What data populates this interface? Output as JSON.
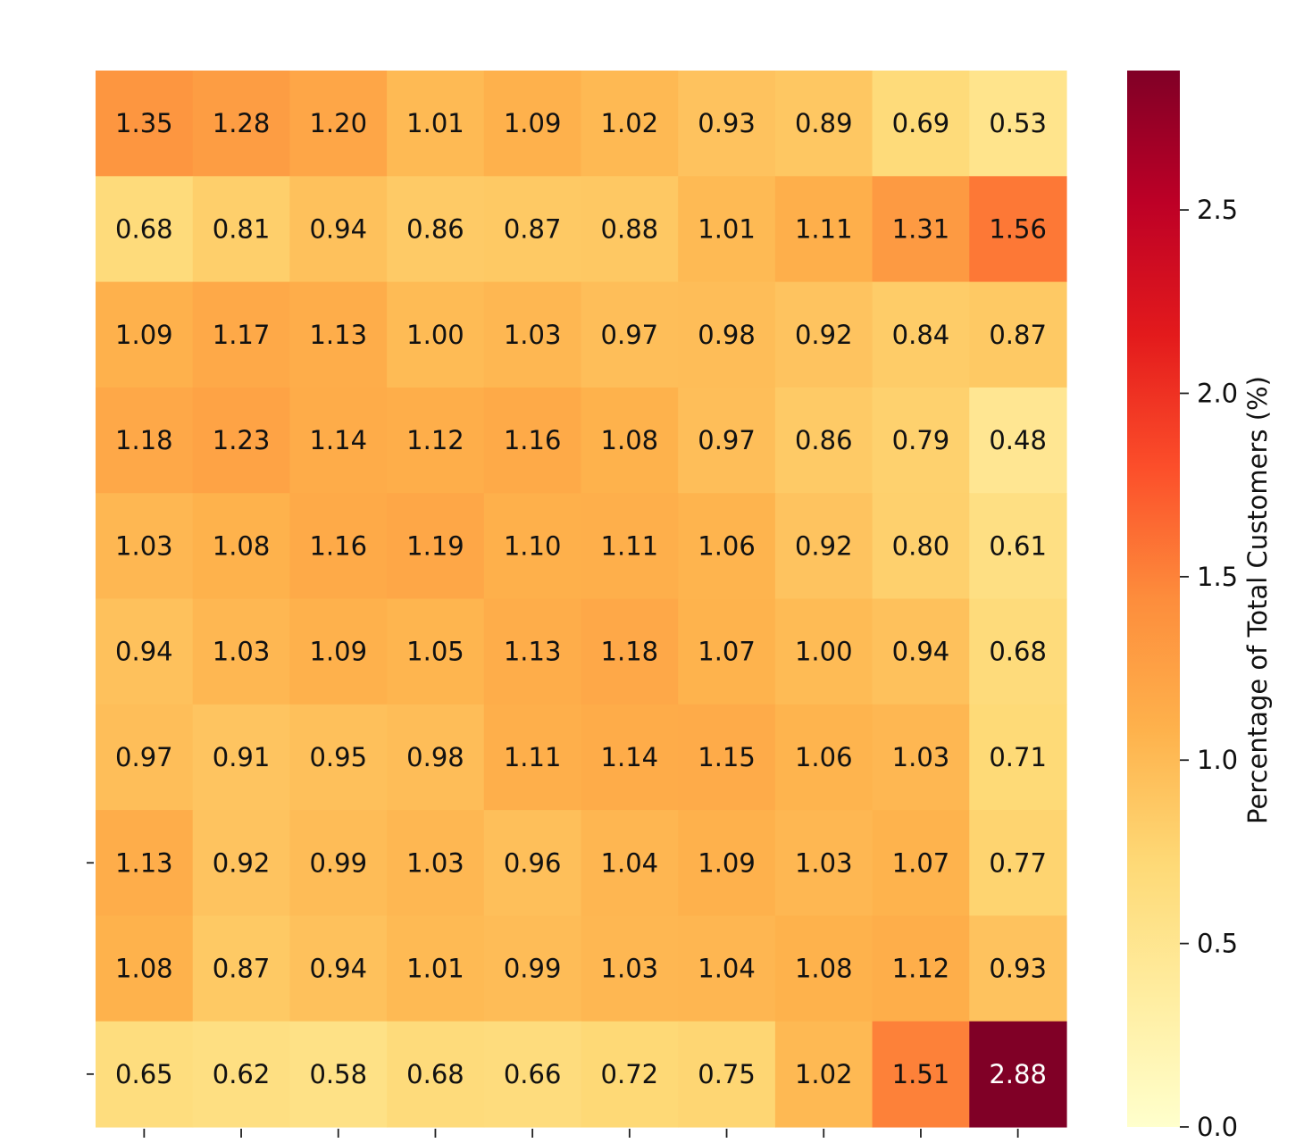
{
  "chart_data": {
    "type": "heatmap",
    "title": "",
    "xlabel": "",
    "ylabel": "",
    "rows": 10,
    "cols": 10,
    "values": [
      [
        1.35,
        1.28,
        1.2,
        1.01,
        1.09,
        1.02,
        0.93,
        0.89,
        0.69,
        0.53
      ],
      [
        0.68,
        0.81,
        0.94,
        0.86,
        0.87,
        0.88,
        1.01,
        1.11,
        1.31,
        1.56
      ],
      [
        1.09,
        1.17,
        1.13,
        1.0,
        1.03,
        0.97,
        0.98,
        0.92,
        0.84,
        0.87
      ],
      [
        1.18,
        1.23,
        1.14,
        1.12,
        1.16,
        1.08,
        0.97,
        0.86,
        0.79,
        0.48
      ],
      [
        1.03,
        1.08,
        1.16,
        1.19,
        1.1,
        1.11,
        1.06,
        0.92,
        0.8,
        0.61
      ],
      [
        0.94,
        1.03,
        1.09,
        1.05,
        1.13,
        1.18,
        1.07,
        1.0,
        0.94,
        0.68
      ],
      [
        0.97,
        0.91,
        0.95,
        0.98,
        1.11,
        1.14,
        1.15,
        1.06,
        1.03,
        0.71
      ],
      [
        1.13,
        0.92,
        0.99,
        1.03,
        0.96,
        1.04,
        1.09,
        1.03,
        1.07,
        0.77
      ],
      [
        1.08,
        0.87,
        0.94,
        1.01,
        0.99,
        1.03,
        1.04,
        1.08,
        1.12,
        0.93
      ],
      [
        0.65,
        0.62,
        0.58,
        0.68,
        0.66,
        0.72,
        0.75,
        1.02,
        1.51,
        2.88
      ]
    ],
    "colormap": "YlOrRd",
    "colorbar": {
      "label": "Percentage of Total Customers (%)",
      "range": [
        0.0,
        2.88
      ],
      "ticks": [
        "0.0",
        "0.5",
        "1.0",
        "1.5",
        "2.0",
        "2.5"
      ],
      "colors": [
        "#ffffcc",
        "#ffeda0",
        "#fed976",
        "#feb24c",
        "#fd8d3c",
        "#fc4e2a",
        "#e31a1c",
        "#bd0026",
        "#800026"
      ]
    },
    "annotations": true,
    "annotation_format": "0.00"
  }
}
